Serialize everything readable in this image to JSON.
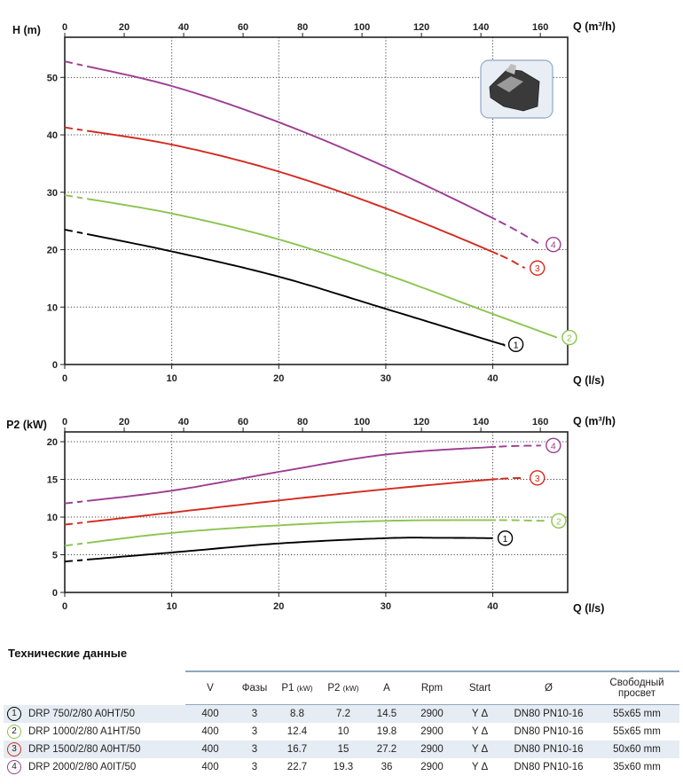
{
  "chart_data": [
    {
      "type": "line",
      "name": "head-chart",
      "ylabel": "H (m)",
      "xlabel": "Q (l/s)",
      "x2label": "Q (m³/h)",
      "xlim": [
        0,
        47
      ],
      "ylim": [
        0,
        57
      ],
      "x2lim": [
        0,
        169.2
      ],
      "xticks": [
        0,
        10,
        20,
        30,
        40
      ],
      "x2ticks": [
        0,
        20,
        40,
        60,
        80,
        100,
        120,
        140,
        160
      ],
      "yticks": [
        0,
        10,
        20,
        30,
        40,
        50
      ],
      "grid": true,
      "series": [
        {
          "name": "1",
          "color": "#000000",
          "x": [
            0,
            10,
            20,
            30,
            40,
            41
          ],
          "y": [
            23.5,
            19.7,
            15.3,
            9.7,
            4.0,
            3.5
          ],
          "dashed_until": 2,
          "dashed_from": 41
        },
        {
          "name": "2",
          "color": "#8cc44f",
          "x": [
            0,
            10,
            20,
            30,
            40,
            46
          ],
          "y": [
            29.5,
            26.3,
            21.8,
            15.7,
            8.8,
            4.7
          ],
          "dashed_until": 2,
          "dashed_from": 46
        },
        {
          "name": "3",
          "color": "#d42a1f",
          "x": [
            0,
            10,
            20,
            30,
            40,
            43
          ],
          "y": [
            41.3,
            38.3,
            33.6,
            27.2,
            19.6,
            16.8
          ],
          "dashed_until": 2,
          "dashed_from": 40.5
        },
        {
          "name": "4",
          "color": "#9c3d92",
          "x": [
            0,
            10,
            20,
            30,
            40,
            44.5
          ],
          "y": [
            52.8,
            48.5,
            42.2,
            34.4,
            25.5,
            20.9
          ],
          "dashed_until": 2,
          "dashed_from": 40.5
        }
      ]
    },
    {
      "type": "line",
      "name": "power-chart",
      "ylabel": "P2 (kW)",
      "xlabel": "Q (l/s)",
      "x2label": "Q (m³/h)",
      "xlim": [
        0,
        47
      ],
      "ylim": [
        0,
        21.3
      ],
      "x2lim": [
        0,
        169.2
      ],
      "xticks": [
        0,
        10,
        20,
        30,
        40
      ],
      "x2ticks": [
        0,
        20,
        40,
        60,
        80,
        100,
        120,
        140,
        160
      ],
      "yticks": [
        0,
        5,
        10,
        15,
        20
      ],
      "grid": true,
      "series": [
        {
          "name": "1",
          "color": "#000000",
          "x": [
            0,
            10,
            20,
            30,
            35,
            40
          ],
          "y": [
            4.1,
            5.3,
            6.5,
            7.2,
            7.25,
            7.2
          ],
          "dashed_until": 2,
          "dashed_from": 40
        },
        {
          "name": "2",
          "color": "#8cc44f",
          "x": [
            0,
            10,
            20,
            30,
            40,
            45
          ],
          "y": [
            6.2,
            7.9,
            8.9,
            9.5,
            9.6,
            9.5
          ],
          "dashed_until": 2,
          "dashed_from": 40.5
        },
        {
          "name": "3",
          "color": "#d42a1f",
          "x": [
            0,
            10,
            20,
            30,
            40,
            43
          ],
          "y": [
            9.0,
            10.6,
            12.2,
            13.7,
            15.0,
            15.2
          ],
          "dashed_until": 2,
          "dashed_from": 40.5
        },
        {
          "name": "4",
          "color": "#9c3d92",
          "x": [
            0,
            10,
            20,
            30,
            40,
            44.5
          ],
          "y": [
            11.8,
            13.5,
            16.0,
            18.3,
            19.3,
            19.5
          ],
          "dashed_until": 2,
          "dashed_from": 40.5
        }
      ]
    }
  ],
  "spec": {
    "title": "Технические данные",
    "headers": {
      "v": "V",
      "phases": "Фазы",
      "p1": "P1",
      "p1_unit": "(kW)",
      "p2": "P2",
      "p2_unit": "(kW)",
      "a": "A",
      "rpm": "Rpm",
      "start": "Start",
      "dia": "Ø",
      "free_line1": "Свободный",
      "free_line2": "просвет"
    },
    "rows": [
      {
        "num": "1",
        "color": "#000000",
        "model": "DRP 750/2/80 A0HT/50",
        "v": "400",
        "phases": "3",
        "p1": "8.8",
        "p2": "7.2",
        "a": "14.5",
        "rpm": "2900",
        "start": "Y Δ",
        "dn": "DN80 PN10-16",
        "free": "55x65 mm"
      },
      {
        "num": "2",
        "color": "#8cc44f",
        "model": "DRP 1000/2/80 A1HT/50",
        "v": "400",
        "phases": "3",
        "p1": "12.4",
        "p2": "10",
        "a": "19.8",
        "rpm": "2900",
        "start": "Y Δ",
        "dn": "DN80 PN10-16",
        "free": "55x65 mm"
      },
      {
        "num": "3",
        "color": "#d42a1f",
        "model": "DRP 1500/2/80 A0HT/50",
        "v": "400",
        "phases": "3",
        "p1": "16.7",
        "p2": "15",
        "a": "27.2",
        "rpm": "2900",
        "start": "Y Δ",
        "dn": "DN80 PN10-16",
        "free": "50x60 mm"
      },
      {
        "num": "4",
        "color": "#9c3d92",
        "model": "DRP 2000/2/80 A0IT/50",
        "v": "400",
        "phases": "3",
        "p1": "22.7",
        "p2": "19.3",
        "a": "36",
        "rpm": "2900",
        "start": "Y Δ",
        "dn": "DN80 PN10-16",
        "free": "35x60 mm"
      }
    ]
  }
}
